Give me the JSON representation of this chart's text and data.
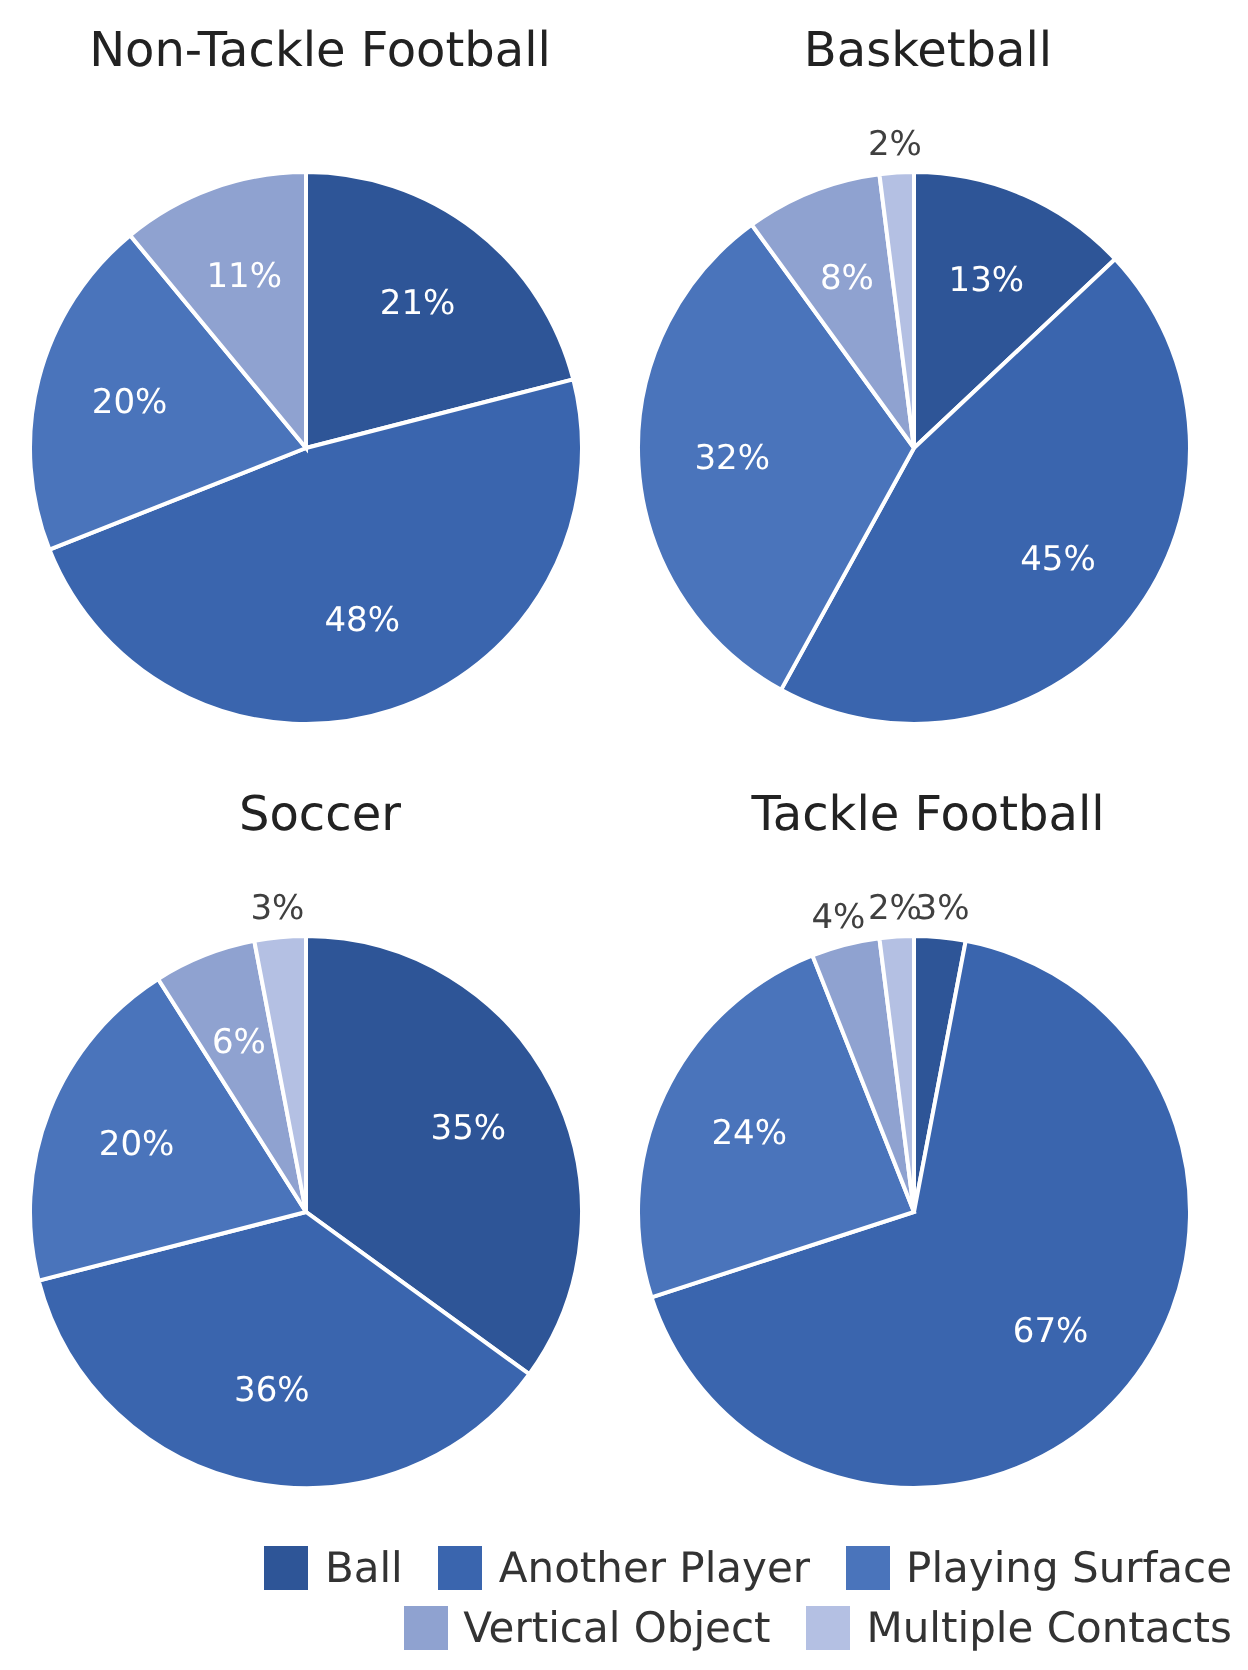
{
  "chart_data": [
    {
      "type": "pie",
      "title": "Non-Tackle Football",
      "categories": [
        null,
        null,
        null,
        null
      ],
      "values": [
        21,
        48,
        20,
        11
      ],
      "colors": [
        "#2e5597",
        "#3a65ae",
        "#4a74bb",
        "#8fa2d0"
      ],
      "value_labels": [
        "21%",
        "48%",
        "20%",
        "11%"
      ],
      "legend": false
    },
    {
      "type": "pie",
      "title": "Basketball",
      "categories": [
        null,
        null,
        null,
        null,
        null
      ],
      "values": [
        13,
        45,
        32,
        8,
        2
      ],
      "colors": [
        "#2e5597",
        "#3a65ae",
        "#4a74bb",
        "#8fa2d0",
        "#b4c0e3"
      ],
      "value_labels": [
        "13%",
        "45%",
        "32%",
        "8%",
        "2%"
      ],
      "legend": false
    },
    {
      "type": "pie",
      "title": "Soccer",
      "categories": [
        null,
        null,
        null,
        null,
        null
      ],
      "values": [
        35,
        36,
        20,
        6,
        3
      ],
      "colors": [
        "#2e5597",
        "#3a65ae",
        "#4a74bb",
        "#8fa2d0",
        "#b4c0e3"
      ],
      "value_labels": [
        "35%",
        "36%",
        "20%",
        "6%",
        "3%"
      ],
      "legend": false
    },
    {
      "type": "pie",
      "title": "Tackle Football",
      "categories": [
        "Ball",
        "Another Player",
        "Playing Surface",
        "Vertical Object",
        "Multiple Contacts"
      ],
      "values": [
        3,
        67,
        24,
        4,
        2
      ],
      "colors": [
        "#2e5597",
        "#3a65ae",
        "#4a74bb",
        "#8fa2d0",
        "#b4c0e3"
      ],
      "value_labels": [
        "3%",
        "67%",
        "24%",
        "4%",
        "2%"
      ],
      "legend": "bottom"
    }
  ]
}
